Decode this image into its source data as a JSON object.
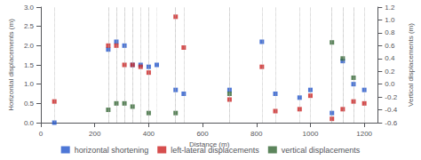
{
  "chart_data": {
    "type": "scatter",
    "xlabel": "Distance (m)",
    "ylabel": "Horizontal displacements (m)",
    "y2label": "Vertical displacements (m)",
    "xlim": [
      0,
      1250
    ],
    "xticks": [
      0,
      200,
      400,
      600,
      800,
      1000,
      1200
    ],
    "ylim": [
      0.0,
      3.0
    ],
    "yticks": [
      {
        "value": 0.0,
        "label": "0.0"
      },
      0.5,
      {
        "value": 1.0,
        "label": "1.0"
      },
      1.5,
      {
        "value": 2.0,
        "label": "2.0"
      },
      2.5,
      {
        "value": 3.0,
        "label": "3.0"
      }
    ],
    "y2lim": [
      -0.6,
      1.2
    ],
    "y2ticks": [
      -0.6,
      -0.4,
      -0.2,
      {
        "value": 0.0,
        "label": "0.0"
      },
      0.2,
      0.4,
      0.6,
      0.8,
      {
        "value": 1.0,
        "label": "1.0"
      },
      1.2
    ],
    "grid": false,
    "legend": "bottom",
    "marker": "square",
    "series": [
      {
        "name": "horizontal shortening",
        "color": "#2255cc",
        "x": [
          50,
          250,
          280,
          310,
          340,
          370,
          400,
          430,
          500,
          530,
          700,
          820,
          870,
          960,
          1000,
          1080,
          1120,
          1160,
          1200
        ],
        "values": [
          0.0,
          1.9,
          2.1,
          2.0,
          1.5,
          1.5,
          1.45,
          1.5,
          0.85,
          0.75,
          0.85,
          2.1,
          0.75,
          0.65,
          0.85,
          0.25,
          1.6,
          1.0,
          0.85
        ]
      },
      {
        "name": "left-lateral displacements",
        "color": "#cc2222",
        "x": [
          50,
          250,
          280,
          310,
          340,
          370,
          400,
          500,
          530,
          700,
          820,
          870,
          960,
          1000,
          1080,
          1120,
          1160,
          1200
        ],
        "values": [
          0.55,
          2.0,
          2.0,
          1.5,
          1.5,
          1.45,
          1.3,
          2.75,
          1.95,
          0.6,
          1.45,
          0.3,
          0.35,
          0.7,
          0.1,
          0.35,
          0.55,
          0.5
        ]
      },
      {
        "name": "vertical displacements",
        "color": "#336633",
        "axis": "y2",
        "x": [
          250,
          280,
          310,
          340,
          400,
          500,
          700,
          1080,
          1120,
          1160
        ],
        "values": [
          -0.4,
          -0.3,
          -0.3,
          -0.35,
          -0.45,
          -0.45,
          -0.15,
          0.65,
          0.4,
          0.1
        ]
      }
    ]
  }
}
